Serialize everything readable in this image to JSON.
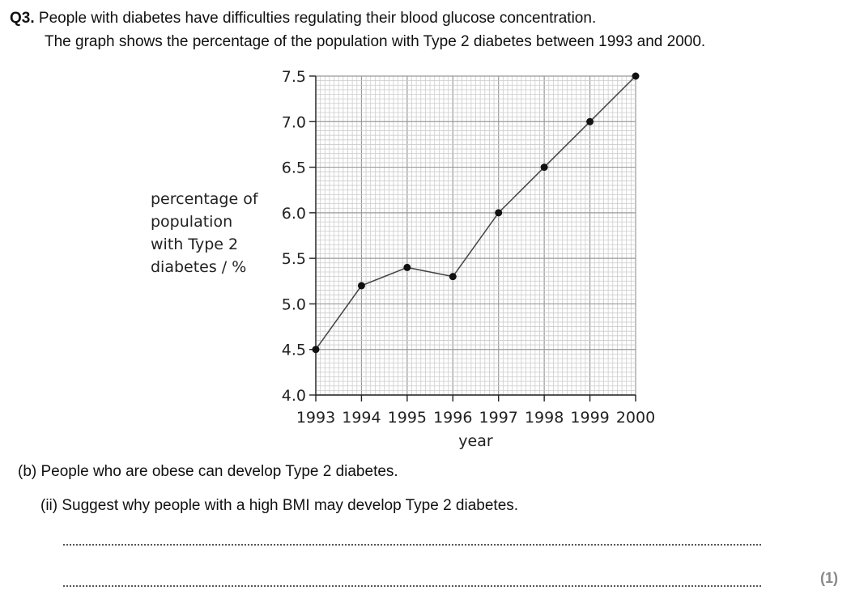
{
  "question": {
    "number": "Q3.",
    "line1": "People with diabetes have difficulties regulating their blood glucose concentration.",
    "line2": "The graph shows the percentage of the population with Type 2 diabetes between 1993 and 2000."
  },
  "chart_data": {
    "type": "line",
    "title": "",
    "xlabel": "year",
    "ylabel": "percentage of population with Type 2 diabetes / %",
    "ylabel_lines": [
      "percentage of",
      "population",
      "with Type 2",
      "diabetes / %"
    ],
    "x": [
      1993,
      1994,
      1995,
      1996,
      1997,
      1998,
      1999,
      2000
    ],
    "x_tick_labels": [
      "1993",
      "1994",
      "1995",
      "1996",
      "1997",
      "1998",
      "1999",
      "2000"
    ],
    "y_tick_labels": [
      "4.0",
      "4.5",
      "5.0",
      "5.5",
      "6.0",
      "6.5",
      "7.0",
      "7.5"
    ],
    "y_ticks": [
      4.0,
      4.5,
      5.0,
      5.5,
      6.0,
      6.5,
      7.0,
      7.5
    ],
    "series": [
      {
        "values": [
          4.5,
          5.2,
          5.4,
          5.3,
          6.0,
          6.5,
          7.0,
          7.5
        ]
      }
    ],
    "xlim": [
      1993,
      2000
    ],
    "ylim": [
      4.0,
      7.5
    ],
    "grid": true,
    "minor_grid": true
  },
  "part_b": {
    "intro": "(b) People who are obese can develop Type 2 diabetes.",
    "sub_ii": "(ii) Suggest why people with a high BMI may develop Type 2 diabetes."
  },
  "marks": "(1)",
  "colors": {
    "grid_major": "#9a9a9a",
    "grid_minor": "#cccccc",
    "line": "#444444",
    "marker": "#111111"
  }
}
